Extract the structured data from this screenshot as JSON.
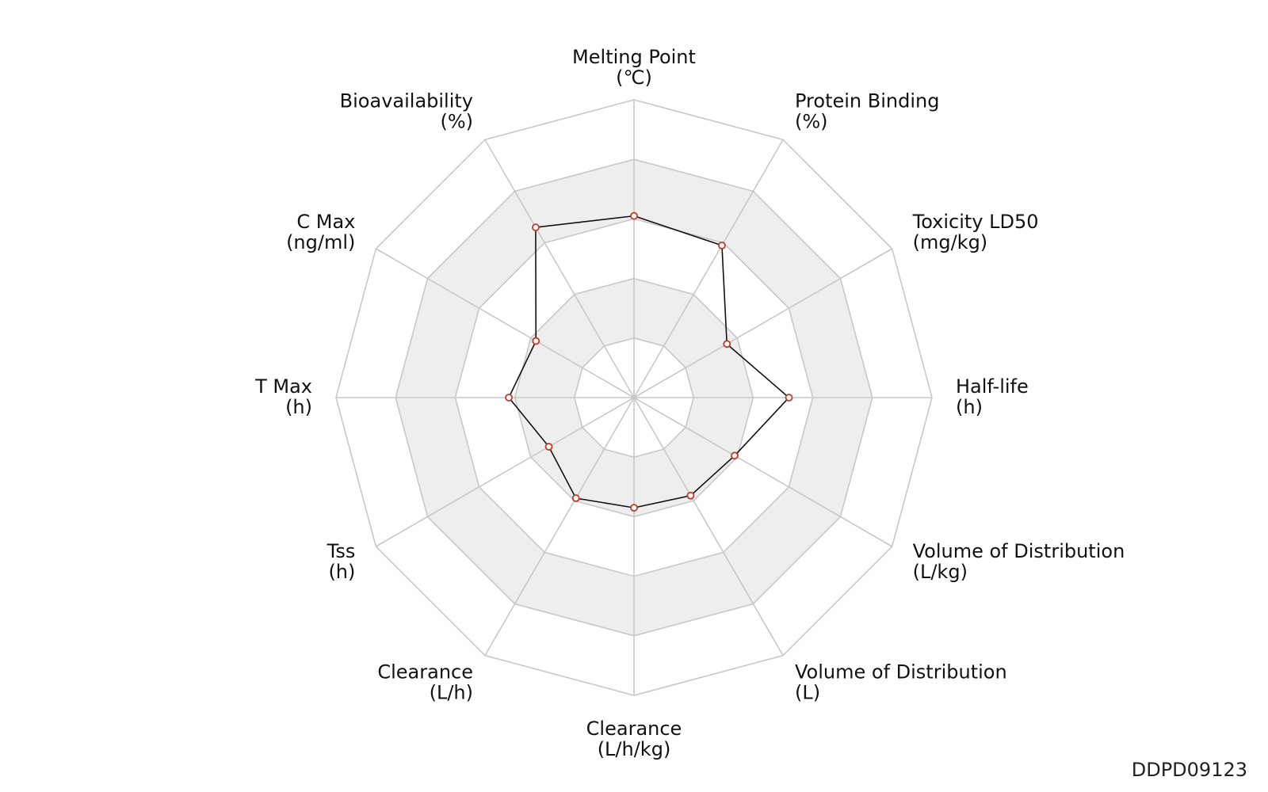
{
  "chart_data": {
    "type": "radar",
    "title": "",
    "axes": [
      {
        "name": "Melting Point",
        "unit": "(℃)"
      },
      {
        "name": "Protein Binding",
        "unit": "(%)"
      },
      {
        "name": "Toxicity LD50",
        "unit": "(mg/kg)"
      },
      {
        "name": "Half-life",
        "unit": "(h)"
      },
      {
        "name": "Volume of Distribution",
        "unit": "(L/kg)"
      },
      {
        "name": "Volume of Distribution",
        "unit": "(L)"
      },
      {
        "name": "Clearance",
        "unit": "(L/h/kg)"
      },
      {
        "name": "Clearance",
        "unit": "(L/h)"
      },
      {
        "name": "Tss",
        "unit": "(h)"
      },
      {
        "name": "T Max",
        "unit": "(h)"
      },
      {
        "name": "C Max",
        "unit": "(ng/ml)"
      },
      {
        "name": "Bioavailability",
        "unit": "(%)"
      }
    ],
    "values": [
      0.61,
      0.59,
      0.36,
      0.52,
      0.39,
      0.38,
      0.37,
      0.39,
      0.33,
      0.42,
      0.38,
      0.66
    ],
    "rings": 5,
    "range": [
      0,
      1
    ],
    "shaded_bands": [
      2,
      4
    ],
    "colors": {
      "grid": "#c8c8c8",
      "band": "#eeeeee",
      "line": "#111111",
      "marker_stroke": "#c0392b",
      "marker_fill": "#ffffff"
    }
  },
  "watermark": "DDPD09123"
}
